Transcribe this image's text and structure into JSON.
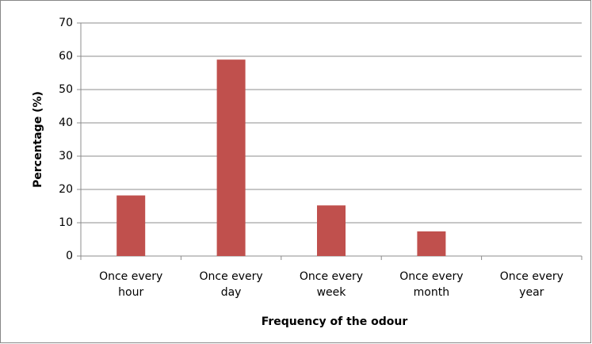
{
  "chart_data": {
    "type": "bar",
    "x_label": "Frequency of the odour",
    "y_label": "Percentage (%)",
    "categories": [
      "Once every hour",
      "Once every day",
      "Once every week",
      "Once every month",
      "Once every year"
    ],
    "values": [
      18.2,
      59,
      15.2,
      7.4,
      0
    ],
    "color": "#c0504d",
    "ylim": [
      0,
      70
    ],
    "yticks": [
      0,
      10,
      20,
      30,
      40,
      50,
      60,
      70
    ],
    "grid": true
  }
}
